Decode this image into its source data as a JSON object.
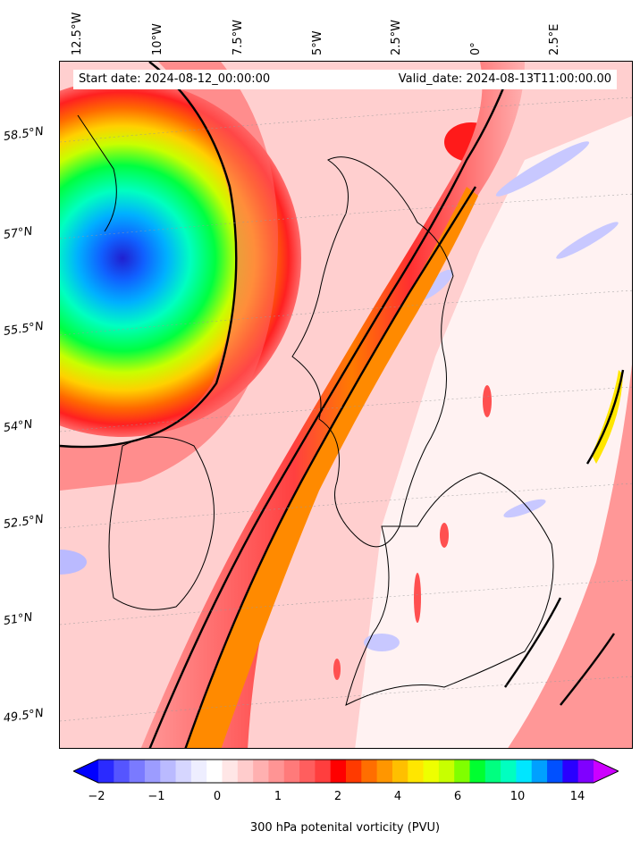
{
  "map": {
    "start_date": "Start date: 2024-08-12_00:00:00",
    "valid_date": "Valid_date: 2024-08-13T11:00:00.00",
    "longitude_labels": [
      "12.5°W",
      "10°W",
      "7.5°W",
      "5°W",
      "2.5°W",
      "0°",
      "2.5°E"
    ],
    "latitude_labels": [
      "58.5°N",
      "57°N",
      "55.5°N",
      "54°N",
      "52.5°N",
      "51°N",
      "49.5°N"
    ],
    "field": "300 hPa potential vorticity",
    "features": [
      "low-pressure-cyclone-west-of-scotland",
      "pv-streamer-band",
      "coastlines"
    ]
  },
  "colorbar": {
    "label": "300 hPa potenital vorticity (PVU)",
    "tick_labels": [
      "−2",
      "−1",
      "0",
      "1",
      "2",
      "4",
      "6",
      "10",
      "14"
    ],
    "levels": [
      -2,
      -1.75,
      -1.5,
      -1.25,
      -1,
      -0.75,
      -0.5,
      -0.25,
      0,
      0.25,
      0.5,
      0.75,
      1,
      1.25,
      1.5,
      1.75,
      2,
      2.5,
      3,
      3.5,
      4,
      4.5,
      5,
      5.5,
      6,
      7,
      8,
      9,
      10,
      11,
      12,
      13,
      14,
      15
    ],
    "colors": [
      "#0000ff",
      "#2a2aff",
      "#5555ff",
      "#7a7aff",
      "#9c9cff",
      "#babaff",
      "#d6d6ff",
      "#eeeeff",
      "#ffffff",
      "#ffe6e6",
      "#ffcccc",
      "#ffb0b0",
      "#ff9494",
      "#ff7a7a",
      "#ff5e5e",
      "#ff3e3e",
      "#ff0000",
      "#ff3a00",
      "#ff6e00",
      "#ff9600",
      "#ffbf00",
      "#ffe600",
      "#eeff00",
      "#c8ff00",
      "#80ff00",
      "#00ff30",
      "#00ff80",
      "#00ffc0",
      "#00e6ff",
      "#00a0ff",
      "#0050ff",
      "#2a00ff",
      "#8000ff",
      "#cc00ff"
    ]
  }
}
